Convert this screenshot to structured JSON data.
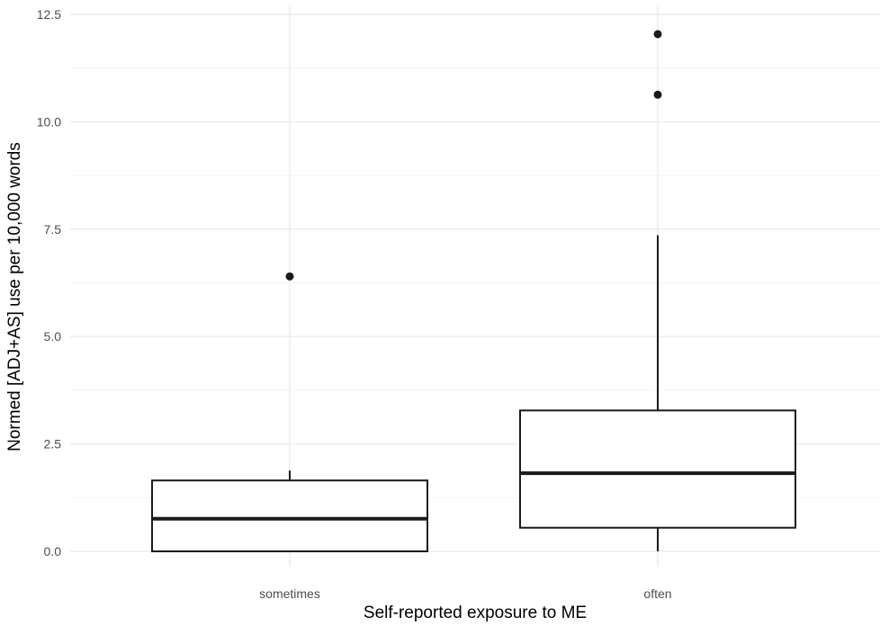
{
  "chart_data": {
    "type": "boxplot",
    "title": "",
    "xlabel": "Self-reported exposure to ME",
    "ylabel": "Normed [ADJ+AS] use per 10,000 words",
    "ylim": [
      -0.35,
      12.75
    ],
    "y_ticks": [
      0.0,
      2.5,
      5.0,
      7.5,
      10.0,
      12.5
    ],
    "y_tick_labels": [
      "0.0",
      "2.5",
      "5.0",
      "7.5",
      "10.0",
      "12.5"
    ],
    "grid": true,
    "theme": "minimal",
    "categories": [
      "sometimes",
      "often"
    ],
    "boxes": [
      {
        "category": "sometimes",
        "whisker_low": 0.0,
        "q1": 0.0,
        "median": 0.76,
        "q3": 1.65,
        "whisker_high": 1.88,
        "outliers": [
          6.4
        ]
      },
      {
        "category": "often",
        "whisker_low": 0.0,
        "q1": 0.55,
        "median": 1.82,
        "q3": 3.28,
        "whisker_high": 7.36,
        "outliers": [
          10.63,
          12.04
        ]
      }
    ],
    "colors": {
      "box_fill": "#ffffff",
      "box_stroke": "#1a1a1a",
      "grid_major": "#ebebeb",
      "grid_minor": "#f3f3f3",
      "outlier": "#1a1a1a"
    }
  }
}
